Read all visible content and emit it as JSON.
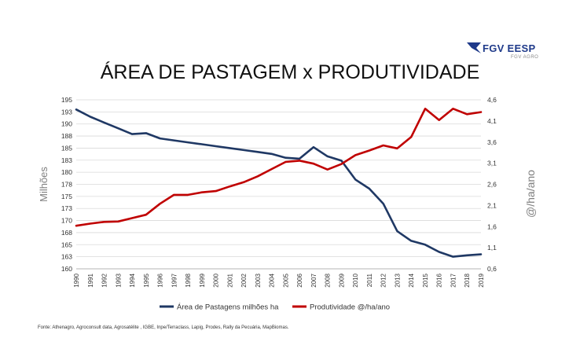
{
  "logo": {
    "text": "FGV EESP",
    "subtext": "FGV AGRO"
  },
  "source_note": "Fonte: Athenagro, Agroconsult data, Agrosatélite , IGBE, Inpe/Terraclass, Lapig, Prodes, Rally da   Pecuária, MapBiomas.",
  "colors": {
    "area": "#1f3864",
    "produtividade": "#c00000",
    "grid": "#d9d9d9"
  },
  "chart_data": {
    "type": "line",
    "title": "ÁREA DE PASTAGEM x PRODUTIVIDADE",
    "ylabel": "Milhões",
    "y2label": "@/ha/ano",
    "x": [
      "1990",
      "1991",
      "1992",
      "1993",
      "1994",
      "1995",
      "1996",
      "1997",
      "1998",
      "1999",
      "2000",
      "2001",
      "2002",
      "2003",
      "2004",
      "2005",
      "2006",
      "2007",
      "2008",
      "2009",
      "2010",
      "2011",
      "2012",
      "2013",
      "2014",
      "2015",
      "2016",
      "2017",
      "2018",
      "2019"
    ],
    "ylim": [
      160,
      195
    ],
    "y_ticks": [
      "195",
      "193",
      "190",
      "188",
      "185",
      "183",
      "180",
      "178",
      "175",
      "173",
      "170",
      "168",
      "165",
      "163",
      "160"
    ],
    "y2lim": [
      0.6,
      4.6
    ],
    "y2_ticks": [
      "4,6",
      "4,1",
      "3,6",
      "3,1",
      "2,6",
      "2,1",
      "1,6",
      "1,1",
      "0,6"
    ],
    "grid": true,
    "legend_position": "bottom",
    "series": [
      {
        "name": "Área de Pastagens milhões ha",
        "axis": "left",
        "values": [
          193.0,
          191.5,
          190.3,
          189.1,
          187.9,
          188.1,
          187.0,
          186.6,
          186.2,
          185.8,
          185.4,
          185.0,
          184.6,
          184.2,
          183.8,
          183.0,
          182.8,
          185.2,
          183.3,
          182.4,
          178.5,
          176.6,
          173.5,
          167.8,
          165.8,
          165.0,
          163.5,
          162.5,
          162.8,
          163.0
        ]
      },
      {
        "name": "Produtividade  @/ha/ano",
        "axis": "right",
        "values": [
          1.62,
          1.67,
          1.71,
          1.72,
          1.8,
          1.88,
          2.14,
          2.35,
          2.35,
          2.41,
          2.44,
          2.55,
          2.65,
          2.79,
          2.96,
          3.13,
          3.16,
          3.09,
          2.95,
          3.08,
          3.29,
          3.4,
          3.52,
          3.45,
          3.72,
          4.39,
          4.12,
          4.39,
          4.26,
          4.31
        ]
      }
    ]
  }
}
